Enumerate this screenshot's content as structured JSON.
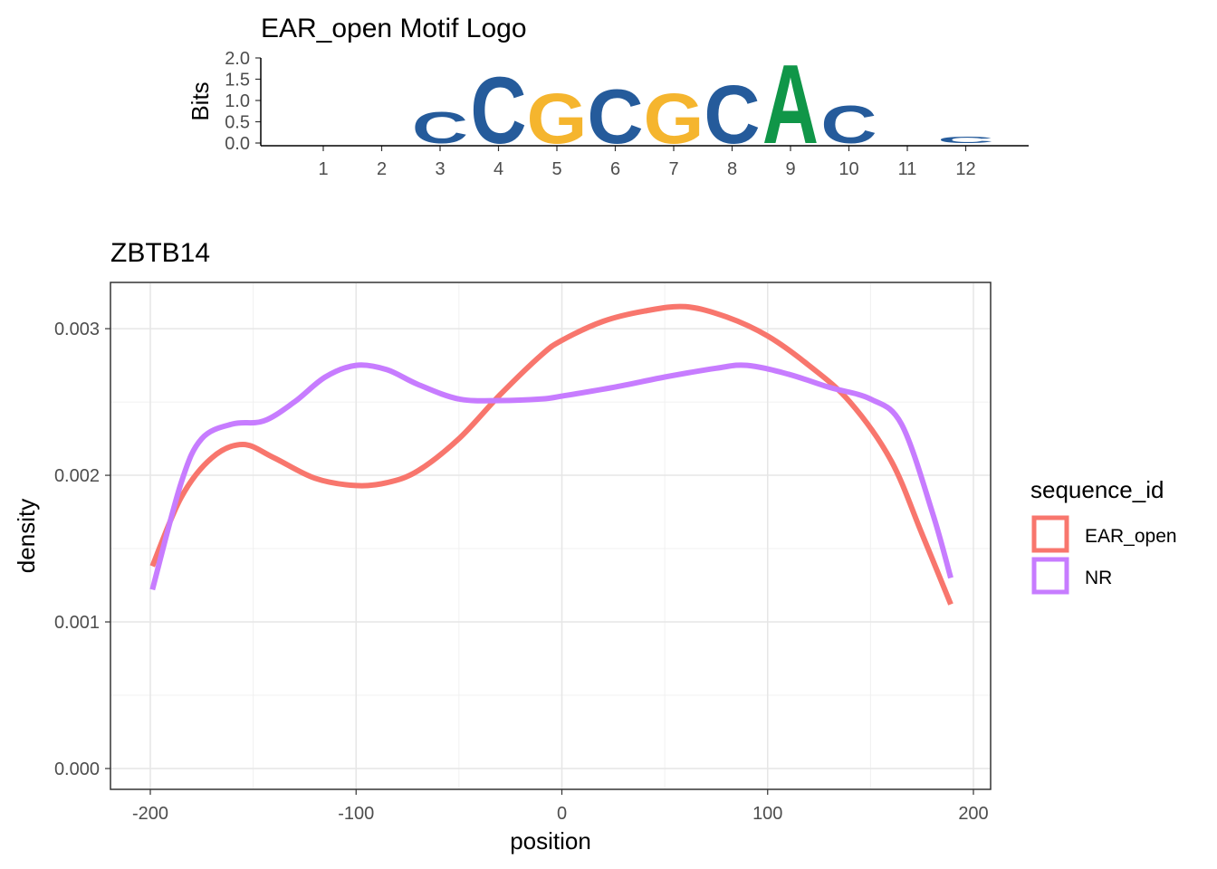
{
  "chart_data": [
    {
      "type": "motif-logo",
      "title": "EAR_open Motif Logo",
      "ylabel": "Bits",
      "ylim": [
        0,
        2
      ],
      "yticks": [
        "0.0",
        "0.5",
        "1.0",
        "1.5",
        "2.0"
      ],
      "positions": [
        "1",
        "2",
        "3",
        "4",
        "5",
        "6",
        "7",
        "8",
        "9",
        "10",
        "11",
        "12"
      ],
      "letters": [
        [],
        [],
        [
          {
            "base": "C",
            "bits": 0.75,
            "color": "#255b9b"
          }
        ],
        [
          {
            "base": "C",
            "bits": 1.6,
            "color": "#255b9b"
          }
        ],
        [
          {
            "base": "G",
            "bits": 1.2,
            "color": "#f5b52e"
          }
        ],
        [
          {
            "base": "C",
            "bits": 1.3,
            "color": "#255b9b"
          }
        ],
        [
          {
            "base": "G",
            "bits": 1.2,
            "color": "#f5b52e"
          }
        ],
        [
          {
            "base": "C",
            "bits": 1.4,
            "color": "#255b9b"
          }
        ],
        [
          {
            "base": "A",
            "bits": 1.9,
            "color": "#109648"
          }
        ],
        [
          {
            "base": "C",
            "bits": 0.9,
            "color": "#255b9b"
          }
        ],
        [],
        [
          {
            "base": "C",
            "bits": 0.15,
            "color": "#255b9b"
          }
        ]
      ]
    },
    {
      "type": "line",
      "title": "ZBTB14",
      "xlabel": "position",
      "ylabel": "density",
      "xlim": [
        -200,
        200
      ],
      "ylim": [
        0,
        0.0033
      ],
      "xticks": [
        -200,
        -100,
        0,
        100,
        200
      ],
      "xtick_labels": [
        "-200",
        "-100",
        "0",
        "100",
        "200"
      ],
      "yticks": [
        0.0,
        0.001,
        0.002,
        0.003
      ],
      "ytick_labels": [
        "0.000",
        "0.001",
        "0.002",
        "0.003"
      ],
      "grid": true,
      "legend": {
        "title": "sequence_id",
        "placement": "right"
      },
      "series": [
        {
          "name": "EAR_open",
          "color": "#f8766d",
          "points": [
            [
              -199,
              0.00138
            ],
            [
              -185,
              0.00185
            ],
            [
              -170,
              0.00212
            ],
            [
              -155,
              0.00221
            ],
            [
              -140,
              0.00212
            ],
            [
              -120,
              0.00198
            ],
            [
              -100,
              0.00193
            ],
            [
              -85,
              0.00195
            ],
            [
              -70,
              0.00203
            ],
            [
              -50,
              0.00225
            ],
            [
              -30,
              0.00255
            ],
            [
              -10,
              0.00282
            ],
            [
              0,
              0.00292
            ],
            [
              20,
              0.00305
            ],
            [
              40,
              0.00312
            ],
            [
              60,
              0.00315
            ],
            [
              80,
              0.00308
            ],
            [
              100,
              0.00295
            ],
            [
              120,
              0.00275
            ],
            [
              140,
              0.0025
            ],
            [
              160,
              0.0021
            ],
            [
              175,
              0.0016
            ],
            [
              189,
              0.00112
            ]
          ]
        },
        {
          "name": "NR",
          "color": "#c77cff",
          "points": [
            [
              -199,
              0.00122
            ],
            [
              -185,
              0.00195
            ],
            [
              -175,
              0.00225
            ],
            [
              -160,
              0.00235
            ],
            [
              -145,
              0.00237
            ],
            [
              -130,
              0.0025
            ],
            [
              -115,
              0.00267
            ],
            [
              -100,
              0.00275
            ],
            [
              -85,
              0.00272
            ],
            [
              -70,
              0.00262
            ],
            [
              -50,
              0.00252
            ],
            [
              -30,
              0.00251
            ],
            [
              -10,
              0.00252
            ],
            [
              0,
              0.00254
            ],
            [
              25,
              0.0026
            ],
            [
              50,
              0.00267
            ],
            [
              75,
              0.00273
            ],
            [
              90,
              0.00275
            ],
            [
              110,
              0.00269
            ],
            [
              130,
              0.0026
            ],
            [
              150,
              0.00252
            ],
            [
              165,
              0.00235
            ],
            [
              180,
              0.00175
            ],
            [
              189,
              0.0013
            ]
          ]
        }
      ]
    }
  ]
}
